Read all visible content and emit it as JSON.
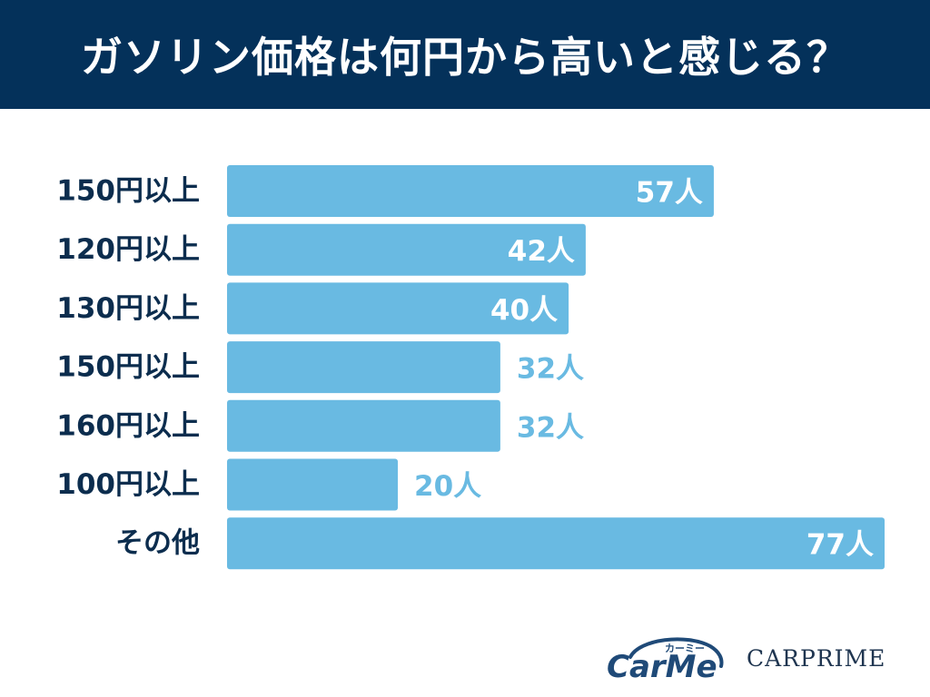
{
  "header": {
    "title": "ガソリン価格は何円から高いと感じる？"
  },
  "colors": {
    "header_bg": "#04315a",
    "bar": "#69bae2",
    "category_text": "#0c2d4e",
    "value_inside": "#ffffff",
    "value_outside": "#69bae2"
  },
  "chart_data": {
    "type": "bar",
    "orientation": "horizontal",
    "title": "ガソリン価格は何円から高いと感じる？",
    "categories": [
      "150円以上",
      "120円以上",
      "130円以上",
      "150円以上",
      "160円以上",
      "100円以上",
      "その他"
    ],
    "values": [
      57,
      42,
      40,
      32,
      32,
      20,
      77
    ],
    "value_labels": [
      "57人",
      "42人",
      "40人",
      "32人",
      "32人",
      "20人",
      "77人"
    ],
    "xlim": [
      0,
      77
    ],
    "grid": false,
    "legend": "none"
  },
  "logos": {
    "carme_text": "CarMe",
    "carme_kana": "カーミー",
    "carprime_text": "CARPRIME"
  }
}
